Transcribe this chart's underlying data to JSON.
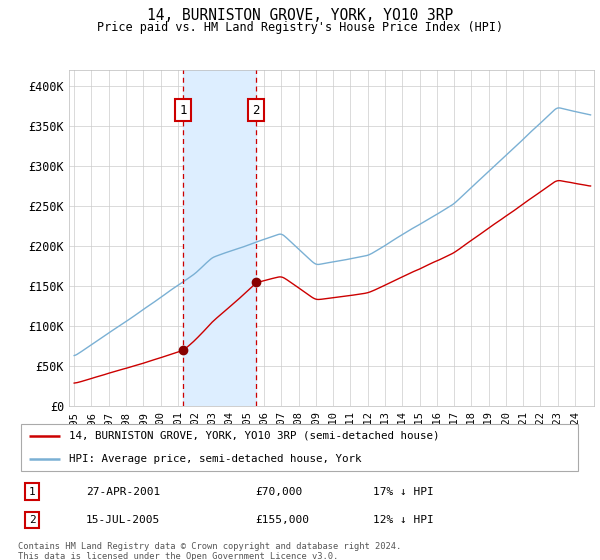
{
  "title": "14, BURNISTON GROVE, YORK, YO10 3RP",
  "subtitle": "Price paid vs. HM Land Registry's House Price Index (HPI)",
  "ylim": [
    0,
    420000
  ],
  "yticks": [
    0,
    50000,
    100000,
    150000,
    200000,
    250000,
    300000,
    350000,
    400000
  ],
  "ytick_labels": [
    "£0",
    "£50K",
    "£100K",
    "£150K",
    "£200K",
    "£250K",
    "£300K",
    "£350K",
    "£400K"
  ],
  "transaction1_date": 2001.32,
  "transaction1_price": 70000,
  "transaction1_label": "1",
  "transaction1_text": "27-APR-2001",
  "transaction1_price_text": "£70,000",
  "transaction1_hpi_text": "17% ↓ HPI",
  "transaction2_date": 2005.54,
  "transaction2_price": 155000,
  "transaction2_label": "2",
  "transaction2_text": "15-JUL-2005",
  "transaction2_price_text": "£155,000",
  "transaction2_hpi_text": "12% ↓ HPI",
  "legend_line1": "14, BURNISTON GROVE, YORK, YO10 3RP (semi-detached house)",
  "legend_line2": "HPI: Average price, semi-detached house, York",
  "footer": "Contains HM Land Registry data © Crown copyright and database right 2024.\nThis data is licensed under the Open Government Licence v3.0.",
  "line_color_red": "#cc0000",
  "line_color_blue": "#7ab0d4",
  "shade_color": "#ddeeff",
  "grid_color": "#cccccc",
  "dot_color": "#880000"
}
